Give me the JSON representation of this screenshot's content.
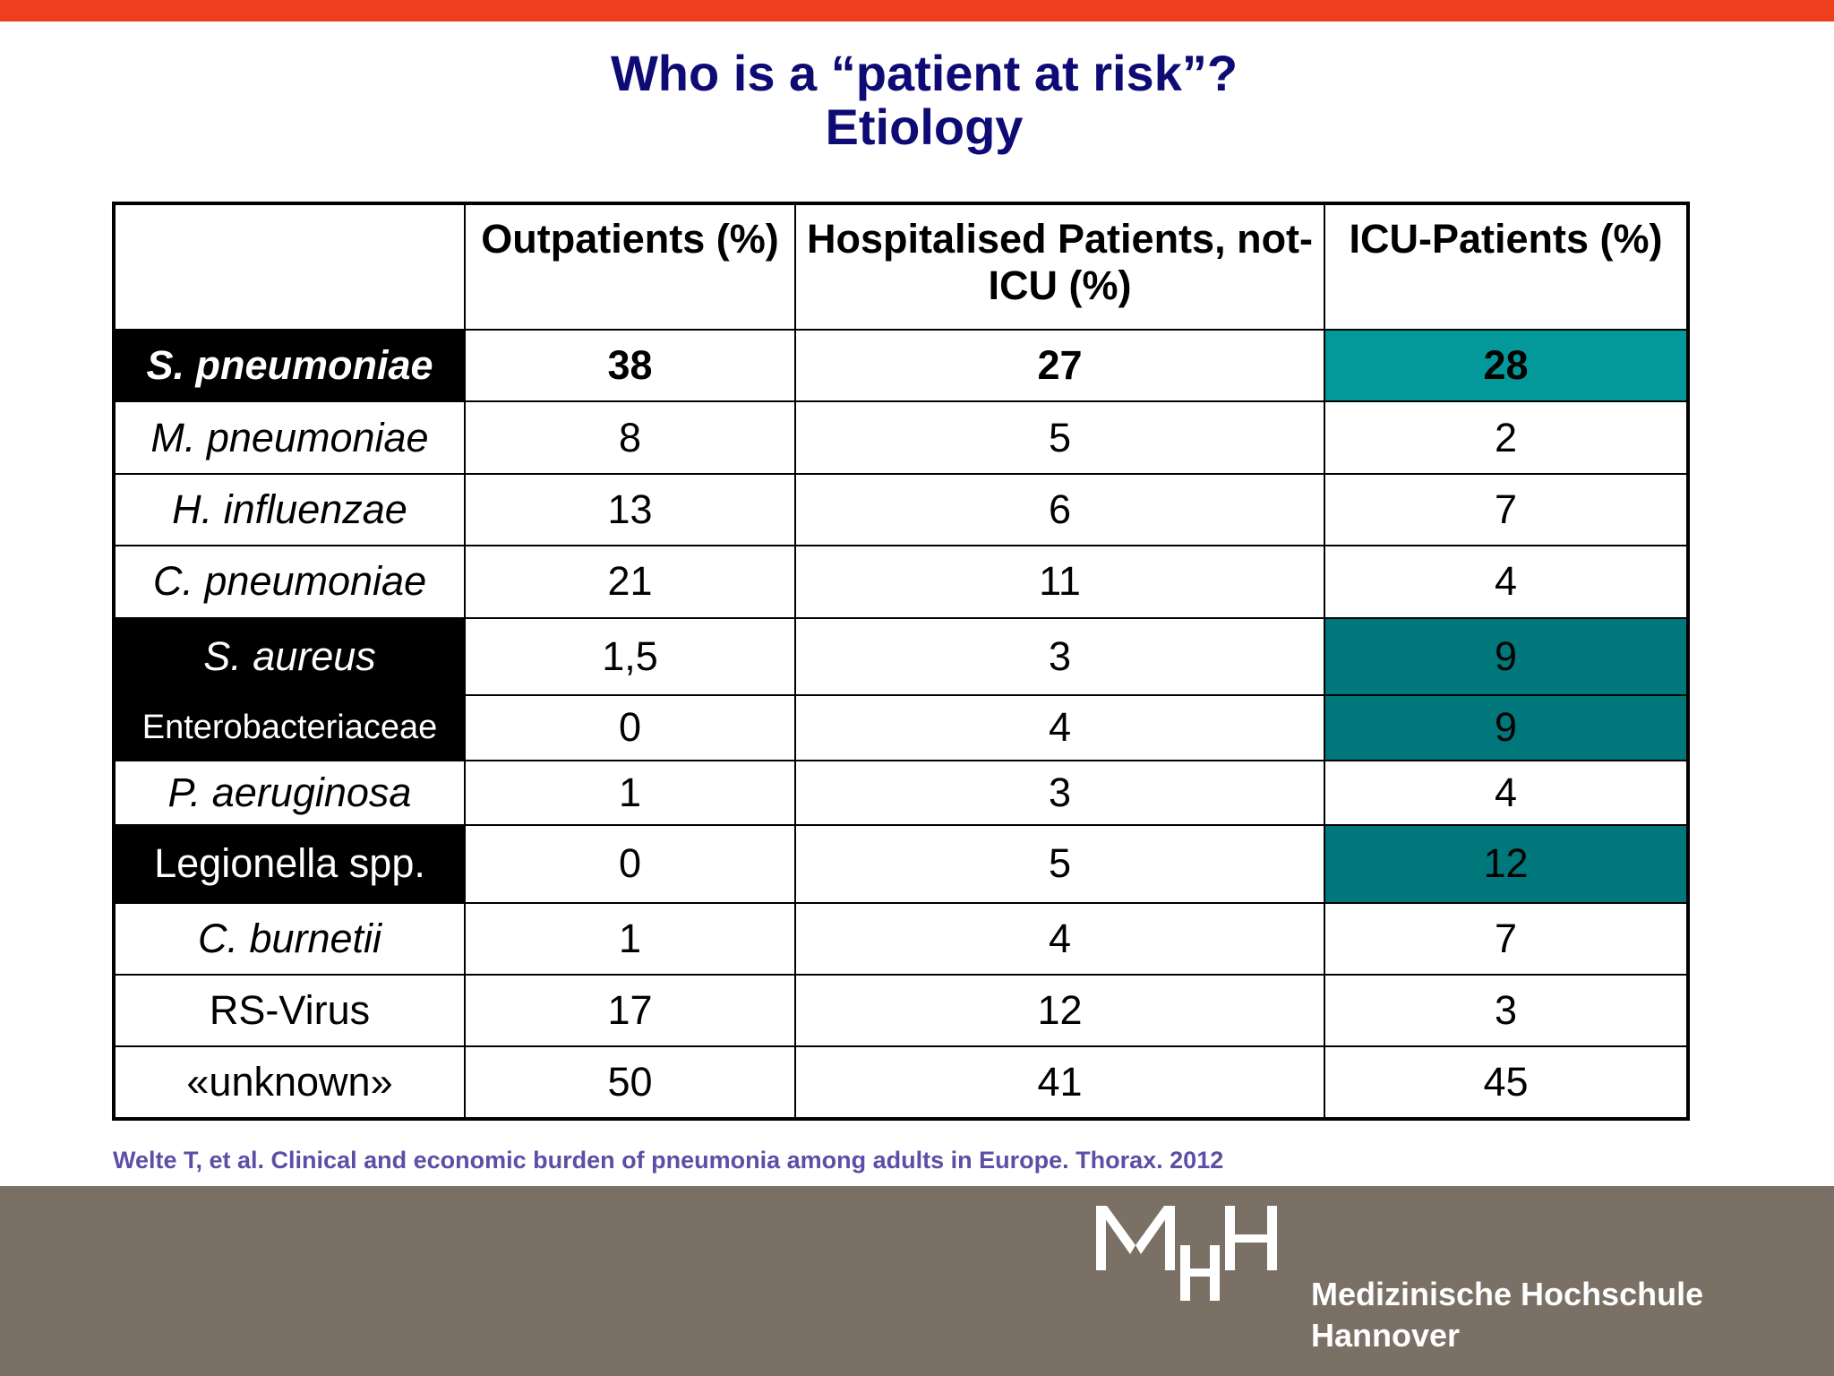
{
  "slide": {
    "title_line1": "Who is a “patient at risk”?",
    "title_line2": "Etiology"
  },
  "table": {
    "headers": [
      "",
      "Outpatients (%)",
      "Hospitalised Patients, not-ICU (%)",
      "ICU-Patients (%)"
    ],
    "rows": [
      {
        "name": "S. pneumoniae",
        "outpatients": "38",
        "hospitalised": "27",
        "icu": "28"
      },
      {
        "name": "M. pneumoniae",
        "outpatients": "8",
        "hospitalised": "5",
        "icu": "2"
      },
      {
        "name": "H. influenzae",
        "outpatients": "13",
        "hospitalised": "6",
        "icu": "7"
      },
      {
        "name": "C. pneumoniae",
        "outpatients": "21",
        "hospitalised": "11",
        "icu": "4"
      },
      {
        "name": "S. aureus",
        "outpatients": "1,5",
        "hospitalised": "3",
        "icu": "9"
      },
      {
        "name": "Enterobacteriaceae",
        "outpatients": "0",
        "hospitalised": "4",
        "icu": "9"
      },
      {
        "name": "P. aeruginosa",
        "outpatients": "1",
        "hospitalised": "3",
        "icu": "4"
      },
      {
        "name": "Legionella spp.",
        "outpatients": "0",
        "hospitalised": "5",
        "icu": "12"
      },
      {
        "name": "C. burnetii",
        "outpatients": "1",
        "hospitalised": "4",
        "icu": "7"
      },
      {
        "name": "RS-Virus",
        "outpatients": "17",
        "hospitalised": "12",
        "icu": "3"
      },
      {
        "name": "«unknown»",
        "outpatients": "50",
        "hospitalised": "41",
        "icu": "45"
      }
    ]
  },
  "citation": "Welte T, et al. Clinical and economic burden of pneumonia among adults in Europe. Thorax. 2012",
  "logo": {
    "mark": "MHH",
    "line1": "Medizinische Hochschule",
    "line2": "Hannover"
  },
  "colors": {
    "top_bar": "#ef3e1e",
    "title": "#0e0b74",
    "icu_highlight": "#00777a",
    "icu_highlight_bright": "#03999a",
    "citation": "#5b4fa6",
    "footer": "#7a7065"
  }
}
